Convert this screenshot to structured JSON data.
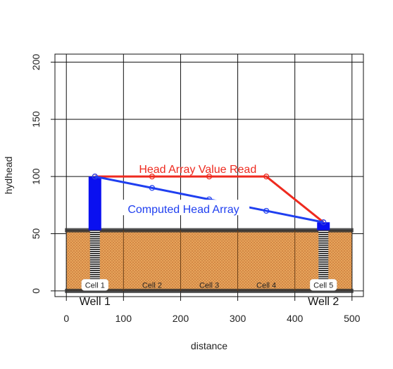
{
  "chart_data": {
    "type": "line",
    "xlabel": "distance",
    "ylabel": "hydhead",
    "xlim": [
      -20,
      520
    ],
    "ylim": [
      -5,
      207
    ],
    "x_ticks": [
      0,
      100,
      200,
      300,
      400,
      500
    ],
    "y_ticks": [
      0,
      50,
      100,
      150,
      200
    ],
    "grid": true,
    "series": [
      {
        "name": "Head Array Value Read",
        "color": "#ee2a1f",
        "x": [
          50,
          150,
          250,
          350,
          450
        ],
        "y": [
          100,
          100,
          100,
          100,
          60
        ]
      },
      {
        "name": "Computed Head Array",
        "color": "#1f3ff0",
        "x": [
          50,
          150,
          250,
          350,
          450
        ],
        "y": [
          100,
          90,
          80,
          70,
          60
        ]
      }
    ],
    "aquifer": {
      "x_range": [
        0,
        500
      ],
      "top": 53,
      "bottom": 0,
      "color": "#d9903a"
    },
    "cells": [
      {
        "label": "Cell 1",
        "x": 50
      },
      {
        "label": "Cell 2",
        "x": 150
      },
      {
        "label": "Cell 3",
        "x": 250
      },
      {
        "label": "Cell 4",
        "x": 350
      },
      {
        "label": "Cell 5",
        "x": 450
      }
    ],
    "wells": [
      {
        "label": "Well 1",
        "x": 50,
        "head": 100,
        "color": "#0a10f0"
      },
      {
        "label": "Well 2",
        "x": 450,
        "head": 60,
        "color": "#0a10f0"
      }
    ]
  }
}
